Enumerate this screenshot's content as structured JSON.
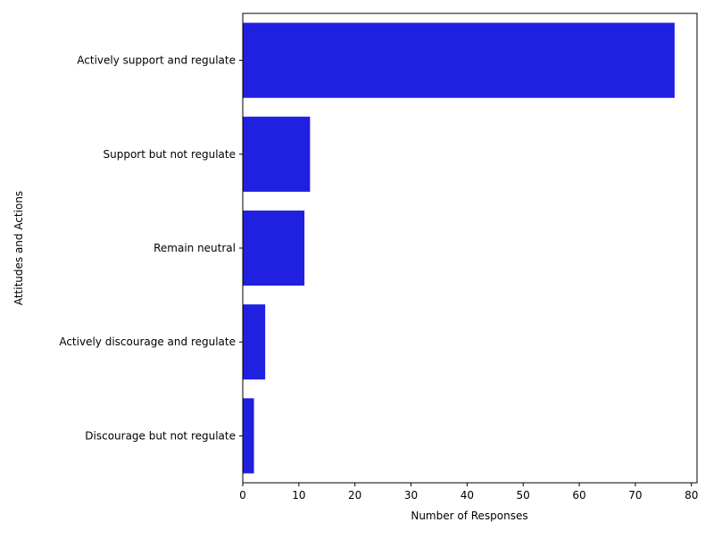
{
  "chart_data": {
    "type": "bar",
    "orientation": "horizontal",
    "categories": [
      "Actively support and regulate",
      "Support but not regulate",
      "Remain neutral",
      "Actively discourage and regulate",
      "Discourage but not regulate"
    ],
    "values": [
      77,
      12,
      11,
      4,
      2
    ],
    "xlabel": "Number of Responses",
    "ylabel": "Attitudes and Actions",
    "xlim": [
      0,
      81
    ],
    "xticks": [
      0,
      10,
      20,
      30,
      40,
      50,
      60,
      70,
      80
    ],
    "bar_color": "#2020e0",
    "grid": false,
    "legend": false
  }
}
